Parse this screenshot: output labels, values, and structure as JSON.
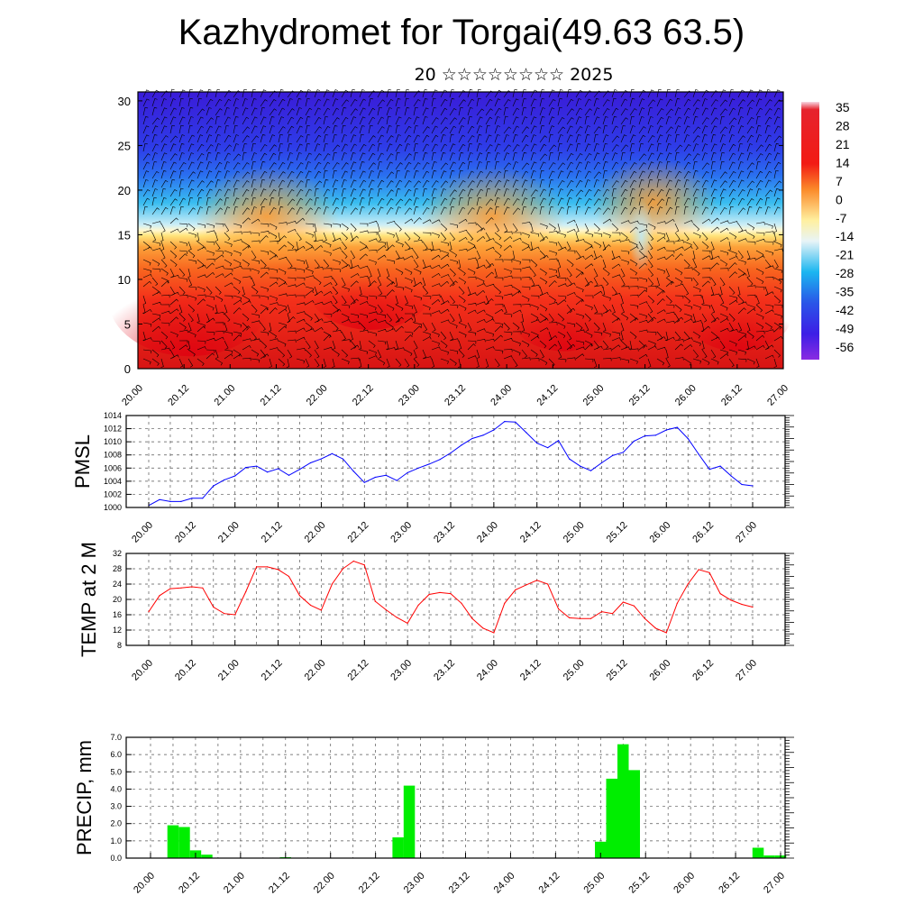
{
  "page": {
    "title": "Kazhydromet for Torgai(49.63 63.5)",
    "subtitle": "20 ☆☆☆☆☆☆☆☆ 2025"
  },
  "chart_data": [
    {
      "id": "cross-section",
      "type": "heatmap",
      "title": "",
      "xlabel": "",
      "ylabel": "",
      "x_ticks": [
        "20.00",
        "20.12",
        "21.00",
        "21.12",
        "22.00",
        "22.12",
        "23.00",
        "23.12",
        "24.00",
        "24.12",
        "25.00",
        "25.12",
        "26.00",
        "26.12",
        "27.00"
      ],
      "y_ticks": [
        0,
        5,
        10,
        15,
        20,
        25,
        30
      ],
      "ylim": [
        0,
        31
      ],
      "colorbar": {
        "labels": [
          "35",
          "28",
          "21",
          "14",
          "7",
          "0",
          "-7",
          "-14",
          "-21",
          "-28",
          "-35",
          "-42",
          "-49",
          "-56"
        ],
        "stops": [
          {
            "value": 38,
            "color": "#f7d7e3"
          },
          {
            "value": 35,
            "color": "#e6232d"
          },
          {
            "value": 14,
            "color": "#f21b14"
          },
          {
            "value": 4,
            "color": "#fb8a2a"
          },
          {
            "value": -8,
            "color": "#fff0a0"
          },
          {
            "value": -16,
            "color": "#e8f4f7"
          },
          {
            "value": -28,
            "color": "#1ab6f0"
          },
          {
            "value": -40,
            "color": "#2a55e8"
          },
          {
            "value": -52,
            "color": "#3d1ee6"
          },
          {
            "value": -62,
            "color": "#8a2be2"
          }
        ]
      },
      "wind_barbs": "shown"
    },
    {
      "id": "pmsl",
      "type": "line",
      "ylabel": "PMSL",
      "ylim": [
        1000,
        1014
      ],
      "y_ticks": [
        1000,
        1002,
        1004,
        1006,
        1008,
        1010,
        1012,
        1014
      ],
      "x_ticks": [
        "20.00",
        "20.12",
        "21.00",
        "21.12",
        "22.00",
        "22.12",
        "23.00",
        "23.12",
        "24.00",
        "24.12",
        "25.00",
        "25.12",
        "26.00",
        "26.12",
        "27.00"
      ],
      "x_step_hours": 3,
      "color": "#0000ff",
      "grid": true,
      "values": [
        1000.3,
        1001.2,
        1000.9,
        1000.9,
        1001.4,
        1001.4,
        1003.3,
        1004.2,
        1004.8,
        1006.1,
        1006.3,
        1005.4,
        1005.9,
        1004.9,
        1005.8,
        1006.8,
        1007.4,
        1008.2,
        1007.4,
        1005.5,
        1003.8,
        1004.6,
        1004.9,
        1004.1,
        1005.3,
        1006.0,
        1006.6,
        1007.3,
        1008.3,
        1009.5,
        1010.5,
        1011.0,
        1011.8,
        1013.1,
        1013.0,
        1011.4,
        1009.8,
        1009.1,
        1010.2,
        1007.4,
        1006.3,
        1005.6,
        1006.8,
        1007.9,
        1008.4,
        1010.1,
        1010.9,
        1011.0,
        1011.8,
        1012.2,
        1010.5,
        1008.1,
        1005.8,
        1006.3,
        1004.8,
        1003.5,
        1003.3
      ]
    },
    {
      "id": "temp2m",
      "type": "line",
      "ylabel": "TEMP at 2 M",
      "ylim": [
        8,
        32
      ],
      "y_ticks": [
        8,
        12,
        16,
        20,
        24,
        28,
        32
      ],
      "x_ticks": [
        "20.00",
        "20.12",
        "21.00",
        "21.12",
        "22.00",
        "22.12",
        "23.00",
        "23.12",
        "24.00",
        "24.12",
        "25.00",
        "25.12",
        "26.00",
        "26.12",
        "27.00"
      ],
      "x_step_hours": 3,
      "color": "#ff0000",
      "grid": true,
      "values": [
        16.8,
        21.0,
        22.8,
        23.0,
        23.3,
        23.0,
        18.0,
        16.3,
        16.0,
        22.0,
        28.5,
        28.5,
        27.8,
        26.0,
        21.0,
        18.5,
        17.2,
        24.0,
        28.0,
        30.0,
        29.0,
        19.5,
        17.3,
        15.3,
        13.8,
        18.5,
        21.3,
        21.8,
        21.5,
        19.0,
        15.0,
        12.5,
        11.3,
        19.0,
        22.5,
        23.8,
        25.0,
        24.0,
        17.5,
        15.2,
        15.0,
        15.0,
        16.8,
        16.3,
        19.3,
        18.3,
        15.0,
        12.5,
        11.3,
        19.0,
        24.0,
        27.8,
        27.0,
        21.5,
        19.8,
        18.7,
        18.0
      ]
    },
    {
      "id": "precip",
      "type": "bar",
      "ylabel": "PRECIP, mm",
      "ylim": [
        0,
        7
      ],
      "y_ticks": [
        "0.0",
        "1.0",
        "2.0",
        "3.0",
        "4.0",
        "5.0",
        "6.0",
        "7.0"
      ],
      "x_ticks": [
        "20.00",
        "20.12",
        "21.00",
        "21.12",
        "22.00",
        "22.12",
        "23.00",
        "23.12",
        "24.00",
        "24.12",
        "25.00",
        "25.12",
        "26.00",
        "26.12",
        "27.00"
      ],
      "x_step_hours": 3,
      "color": "#00ee00",
      "grid": true,
      "values": [
        0,
        0,
        1.9,
        1.8,
        0.45,
        0.2,
        0,
        0,
        0,
        0,
        0,
        0,
        0.05,
        0,
        0,
        0,
        0,
        0,
        0,
        0,
        0,
        0,
        1.2,
        4.2,
        0,
        0,
        0,
        0,
        0,
        0,
        0,
        0,
        0,
        0,
        0,
        0,
        0,
        0,
        0,
        0,
        0.95,
        4.6,
        6.6,
        5.1,
        0,
        0,
        0,
        0,
        0,
        0,
        0,
        0,
        0,
        0,
        0.6,
        0.15,
        0.15
      ]
    }
  ]
}
